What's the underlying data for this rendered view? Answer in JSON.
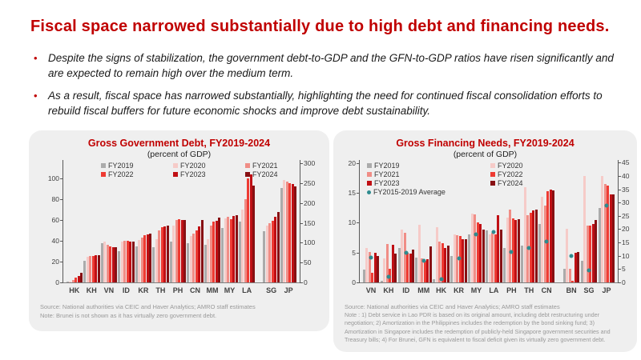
{
  "slide": {
    "title": "Fiscal space narrowed substantially due to high debt and financing needs.",
    "bullet_glyph": "•",
    "bullets": [
      {
        "text": "Despite the signs of stabilization, the government debt-to-GDP and the GFN-to-GDP ratios have risen significantly and are expected to remain high over the medium term."
      },
      {
        "text": "As a result, fiscal space has narrowed substantially, highlighting the need for continued fiscal consolidation efforts to rebuild fiscal buffers for future economic shocks and improve debt sustainability."
      }
    ]
  },
  "colors": {
    "accent_red": "#c00000",
    "panel_bg": "#efefef",
    "fy_colors": [
      "#ababab",
      "#f6cbc8",
      "#f08d86",
      "#ee3b33",
      "#c00f14",
      "#871013"
    ],
    "avg_marker": "#2e8b8f"
  },
  "chart_data": [
    {
      "type": "bar",
      "title": "Gross Government Debt, FY2019-2024",
      "subtitle": "(percent of GDP)",
      "series_names": [
        "FY2019",
        "FY2020",
        "FY2021",
        "FY2022",
        "FY2023",
        "FY2024"
      ],
      "legend_columns": 3,
      "left_axis": {
        "label_ticks": [
          0,
          20,
          40,
          60,
          80,
          100
        ],
        "max": 118
      },
      "right_axis": {
        "label_ticks": [
          0,
          50,
          100,
          150,
          200,
          250,
          300
        ],
        "max": 308
      },
      "categories": [
        "HK",
        "KH",
        "VN",
        "ID",
        "KR",
        "TH",
        "PH",
        "CN",
        "MM",
        "MY",
        "LA",
        "SG",
        "JP"
      ],
      "right_axis_categories": [
        "SG",
        "JP"
      ],
      "gap_before": [
        "SG"
      ],
      "values": {
        "HK": [
          0.3,
          1.0,
          2.1,
          4.3,
          6.4,
          9.0
        ],
        "KH": [
          21,
          24.5,
          25.5,
          25.5,
          26,
          26.5
        ],
        "VN": [
          38,
          39.5,
          36.5,
          34.5,
          34,
          34
        ],
        "ID": [
          30,
          39,
          40.5,
          40,
          39,
          39.5
        ],
        "KR": [
          35,
          41,
          43.5,
          45.5,
          46.5,
          47
        ],
        "TH": [
          34,
          42,
          50,
          53,
          54,
          55
        ],
        "PH": [
          39.5,
          54.5,
          60.5,
          61,
          60,
          60.5
        ],
        "CN": [
          38,
          45,
          47,
          50.5,
          54,
          60.5
        ],
        "MM": [
          36,
          41.5,
          55,
          58.5,
          59.5,
          62.5
        ],
        "MY": [
          52.5,
          62,
          63,
          61,
          64,
          64.5
        ],
        "LA": [
          58.5,
          70,
          80,
          100,
          104,
          93
        ],
        "SG": [
          128,
          143,
          150,
          155,
          165,
          178
        ],
        "JP": [
          238,
          258,
          253,
          250,
          247,
          242
        ]
      },
      "source": "Source: National authorities via CEIC and Haver Analytics; AMRO staff estimates",
      "note": "Note: Brunei is not shown as it has virtually zero government debt."
    },
    {
      "type": "bar",
      "title": "Gross Financing Needs, FY2019-2024",
      "subtitle": "(percent of GDP)",
      "series_names": [
        "FY2019",
        "FY2020",
        "FY2021",
        "FY2022",
        "FY2023",
        "FY2024"
      ],
      "average_label": "FY2015-2019 Average",
      "legend_columns": 2,
      "left_axis": {
        "label_ticks": [
          0,
          5,
          10,
          15,
          20
        ],
        "max": 20.5
      },
      "right_axis": {
        "label_ticks": [
          0,
          5,
          10,
          15,
          20,
          25,
          30,
          35,
          40,
          45
        ],
        "max": 46
      },
      "categories": [
        "VN",
        "KH",
        "ID",
        "MM",
        "HK",
        "KR",
        "MY",
        "LA",
        "PH",
        "TH",
        "CN",
        "BN",
        "SG",
        "JP"
      ],
      "right_axis_categories": [
        "BN",
        "SG",
        "JP"
      ],
      "gap_before": [
        "BN"
      ],
      "values": {
        "VN": [
          2.2,
          5.7,
          5.1,
          1.6,
          5.0,
          4.4
        ],
        "KH": [
          0.3,
          4.0,
          6.5,
          2.3,
          6.3,
          4.8
        ],
        "ID": [
          5.7,
          8.9,
          8.3,
          4.9,
          4.8,
          5.5
        ],
        "MM": [
          4.1,
          9.7,
          4.0,
          3.6,
          3.9,
          6.0
        ],
        "HK": [
          0.6,
          9.2,
          6.9,
          6.6,
          5.8,
          6.2
        ],
        "KR": [
          4.4,
          8.0,
          7.9,
          7.8,
          7.3,
          7.2
        ],
        "MY": [
          8.0,
          11.5,
          11.4,
          10.0,
          9.8,
          8.8
        ],
        "LA": [
          8.7,
          8.0,
          8.3,
          8.1,
          11.2,
          8.9
        ],
        "PH": [
          5.8,
          10.9,
          12.2,
          10.7,
          10.4,
          10.6
        ],
        "TH": [
          6.2,
          16.0,
          11.3,
          11.6,
          12.0,
          12.2
        ],
        "CN": [
          9.8,
          14.4,
          12.9,
          15.3,
          15.6,
          15.4
        ],
        "BN": [
          5.0,
          20.0,
          5.2,
          0.5,
          11.0,
          11.5
        ],
        "SG": [
          8.0,
          40.0,
          21.5,
          21.3,
          22.0,
          23.5
        ],
        "JP": [
          28.0,
          40.0,
          37.0,
          36.5,
          33.0,
          33.0
        ]
      },
      "averages": {
        "VN": 4.2,
        "KH": 0.9,
        "ID": 5.0,
        "MM": 3.6,
        "HK": 0.5,
        "KR": 4.0,
        "MY": 8.1,
        "LA": 8.5,
        "PH": 5.1,
        "TH": 5.7,
        "CN": 6.9,
        "BN": 10.0,
        "SG": 4.5,
        "JP": 29.0
      },
      "source": "Source: National authorities via CEIC and Haver Analytics; AMRO staff estimates",
      "note": "Note : 1) Debt service in Lao PDR is based on its original amount, including debt restructuring under negotiation; 2) Amortization in the Philippines includes the redemption by the bond sinking fund; 3) Amortization in Singapore includes the redemption of publicly-held Singapore government securities and Treasury bills; 4) For Brunei, GFN is equivalent to fiscal deficit given its virtually zero government debt."
    }
  ]
}
